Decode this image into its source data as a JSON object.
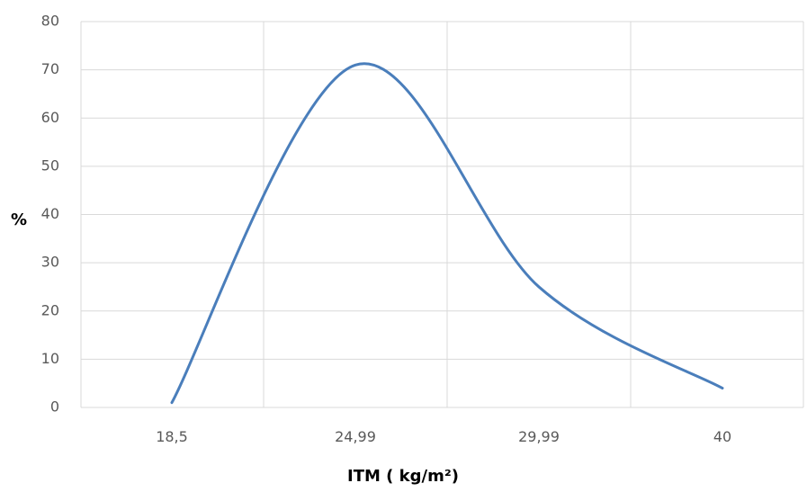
{
  "chart_data": {
    "type": "line",
    "title": "",
    "xlabel": "ITM ( kg/m²)",
    "ylabel": "%",
    "categories": [
      "18,5",
      "24,99",
      "29,99",
      "40"
    ],
    "series": [
      {
        "values": [
          1,
          71,
          25,
          4
        ]
      }
    ],
    "smooth": true,
    "ylim": [
      0,
      80
    ],
    "yticks": [
      "0",
      "10",
      "20",
      "30",
      "40",
      "50",
      "60",
      "70",
      "80"
    ],
    "grid": true,
    "legend": "none",
    "colors": {
      "series": "#4a7ebb",
      "grid": "#d9d9d9",
      "tick_text": "#595959"
    }
  }
}
